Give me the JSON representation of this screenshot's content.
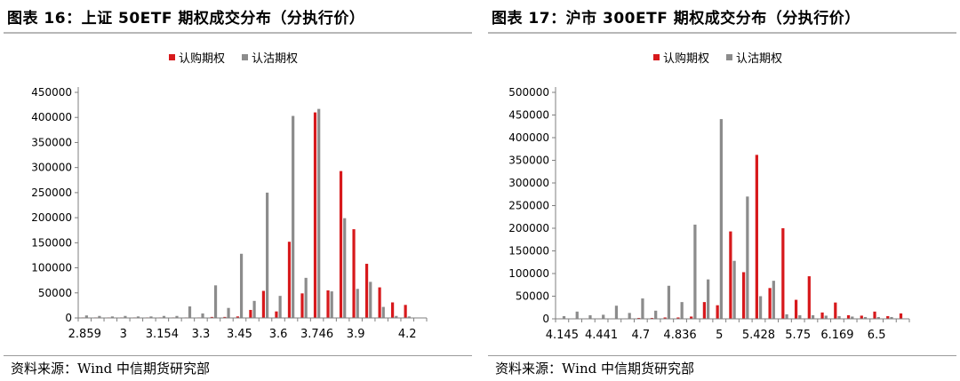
{
  "charts": [
    {
      "title": "图表 16：上证 50ETF 期权成交分布（分执行价）",
      "source": "资料来源：Wind  中信期货研究部"
    },
    {
      "title": "图表 17：沪市 300ETF 期权成交分布（分执行价）",
      "source": "资料来源：Wind  中信期货研究部"
    }
  ],
  "colors": {
    "call": "#d7191c",
    "put": "#8c8c8c"
  },
  "chart_data": [
    {
      "type": "bar",
      "legend": [
        "认购期权",
        "认沽期权"
      ],
      "legend_position": "top",
      "ylim": [
        0,
        450000
      ],
      "yticks": [
        "0",
        "50000",
        "100000",
        "150000",
        "200000",
        "250000",
        "300000",
        "350000",
        "400000",
        "450000"
      ],
      "xtick_labels": [
        "2.859",
        "3",
        "3.154",
        "3.3",
        "3.45",
        "3.6",
        "3.746",
        "3.9",
        "4.2"
      ],
      "xtick_index": [
        0,
        3,
        6,
        9,
        12,
        15,
        18,
        21,
        25
      ],
      "categories": [
        "c1",
        "c2",
        "c3",
        "c4",
        "c5",
        "c6",
        "c7",
        "c8",
        "c9",
        "c10",
        "c11",
        "c12",
        "c13",
        "c14",
        "c15",
        "c16",
        "c17",
        "c18",
        "c19",
        "c20",
        "c21",
        "c22",
        "c23",
        "c24",
        "c25",
        "c26",
        "c27"
      ],
      "series": [
        {
          "name": "认购期权",
          "values": [
            1000,
            1000,
            1000,
            1000,
            1000,
            1000,
            1000,
            1000,
            1000,
            1000,
            2000,
            2000,
            3000,
            16000,
            54000,
            13000,
            152000,
            49000,
            410000,
            55000,
            293000,
            177000,
            108000,
            61000,
            31000,
            26000,
            0
          ]
        },
        {
          "name": "认沽期权",
          "values": [
            5000,
            4000,
            3000,
            4000,
            3000,
            3000,
            4000,
            4000,
            23000,
            9000,
            65000,
            20000,
            128000,
            34000,
            250000,
            44000,
            403000,
            80000,
            417000,
            53000,
            199000,
            58000,
            72000,
            22000,
            4000,
            3000,
            0
          ]
        }
      ]
    },
    {
      "type": "bar",
      "legend": [
        "认购期权",
        "认沽期权"
      ],
      "legend_position": "top",
      "ylim": [
        0,
        500000
      ],
      "yticks": [
        "0",
        "50000",
        "100000",
        "150000",
        "200000",
        "250000",
        "300000",
        "350000",
        "400000",
        "450000",
        "500000"
      ],
      "xtick_labels": [
        "4.145",
        "4.441",
        "4.7",
        "4.836",
        "5",
        "5.428",
        "5.75",
        "6.169",
        "6.5"
      ],
      "xtick_index": [
        0,
        3,
        6,
        9,
        12,
        15,
        18,
        21,
        24
      ],
      "categories": [
        "c1",
        "c2",
        "c3",
        "c4",
        "c5",
        "c6",
        "c7",
        "c8",
        "c9",
        "c10",
        "c11",
        "c12",
        "c13",
        "c14",
        "c15",
        "c16",
        "c17",
        "c18",
        "c19",
        "c20",
        "c21",
        "c22",
        "c23",
        "c24",
        "c25",
        "c26",
        "c27"
      ],
      "series": [
        {
          "name": "认购期权",
          "values": [
            1000,
            1000,
            1000,
            1000,
            1000,
            1000,
            2000,
            2000,
            3000,
            3000,
            5000,
            37000,
            30000,
            193000,
            103000,
            362000,
            68000,
            200000,
            42000,
            94000,
            14000,
            36000,
            8000,
            7000,
            16000,
            6000,
            12000
          ]
        },
        {
          "name": "认沽期权",
          "values": [
            6000,
            16000,
            8000,
            9000,
            29000,
            13000,
            45000,
            18000,
            73000,
            37000,
            208000,
            87000,
            441000,
            128000,
            270000,
            50000,
            84000,
            10000,
            8000,
            8000,
            7000,
            6000,
            5000,
            4000,
            4000,
            4000,
            0
          ]
        }
      ]
    }
  ]
}
